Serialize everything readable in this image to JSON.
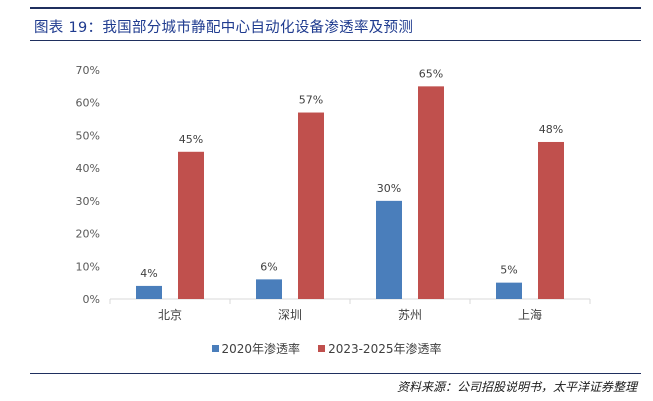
{
  "title": "图表 19：我国部分城市静配中心自动化设备渗透率及预测",
  "source": "资料来源：公司招股说明书，太平洋证券整理",
  "colors": {
    "rule": "#1f2f5e",
    "title": "#1f3b8f",
    "axis": "#d9d9d9"
  },
  "chart_data": {
    "type": "bar",
    "categories": [
      "北京",
      "深圳",
      "苏州",
      "上海"
    ],
    "series": [
      {
        "name": "2020年渗透率",
        "values": [
          4,
          6,
          30,
          5
        ],
        "labels": [
          "4%",
          "6%",
          "30%",
          "5%"
        ],
        "color": "#4a7ebb"
      },
      {
        "name": "2023-2025年渗透率",
        "values": [
          45,
          57,
          65,
          48
        ],
        "labels": [
          "45%",
          "57%",
          "65%",
          "48%"
        ],
        "color": "#c0504d"
      }
    ],
    "ylim": [
      0,
      70
    ],
    "yticks": [
      "0%",
      "10%",
      "20%",
      "30%",
      "40%",
      "50%",
      "60%",
      "70%"
    ],
    "grid": false,
    "legend_position": "bottom"
  }
}
